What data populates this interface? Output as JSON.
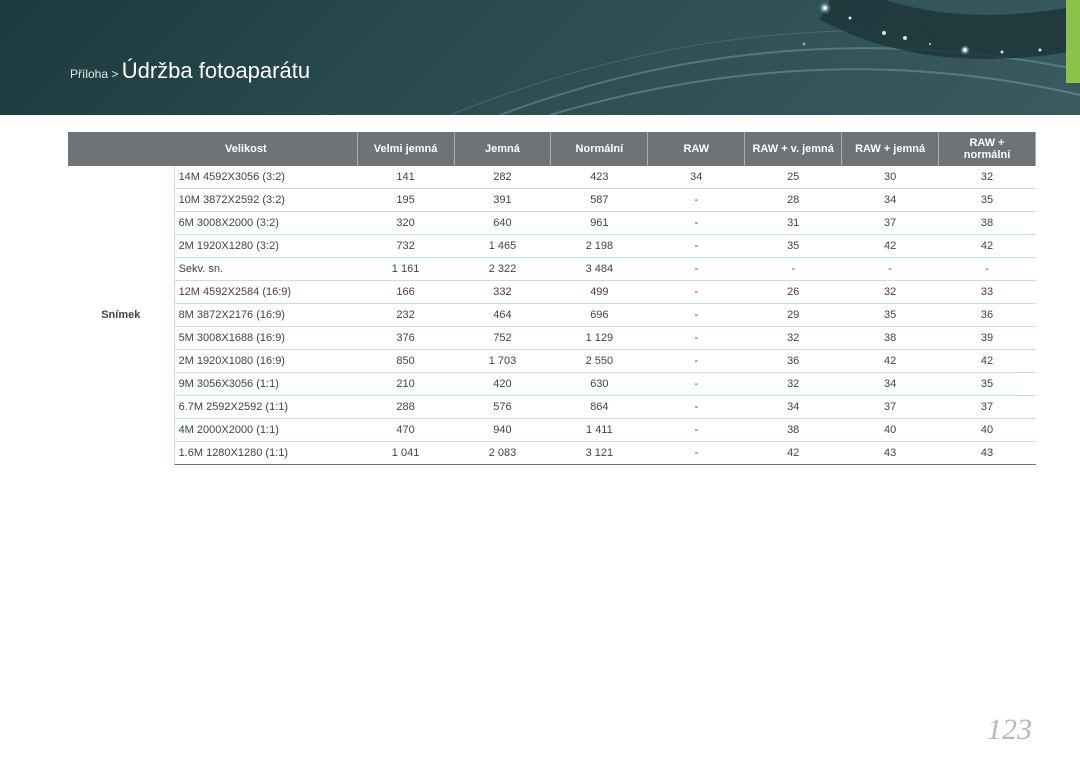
{
  "header": {
    "prefix": "Příloha >",
    "title": "Údržba fotoaparátu"
  },
  "table": {
    "row_label": "Snímek",
    "columns": [
      "Velikost",
      "Velmi jemná",
      "Jemná",
      "Normální",
      "RAW",
      "RAW + v. jemná",
      "RAW + jemná",
      "RAW + normální"
    ],
    "rows": [
      [
        "14M 4592X3056 (3:2)",
        "141",
        "282",
        "423",
        "34",
        "25",
        "30",
        "32"
      ],
      [
        "10M 3872X2592 (3:2)",
        "195",
        "391",
        "587",
        "-",
        "28",
        "34",
        "35"
      ],
      [
        "6M 3008X2000 (3:2)",
        "320",
        "640",
        "961",
        "-",
        "31",
        "37",
        "38"
      ],
      [
        "2M 1920X1280 (3:2)",
        "732",
        "1 465",
        "2 198",
        "-",
        "35",
        "42",
        "42"
      ],
      [
        "Sekv. sn.",
        "1 161",
        "2 322",
        "3 484",
        "-",
        "-",
        "-",
        "-"
      ],
      [
        "12M 4592X2584 (16:9)",
        "166",
        "332",
        "499",
        "-",
        "26",
        "32",
        "33"
      ],
      [
        "8M 3872X2176 (16:9)",
        "232",
        "464",
        "696",
        "-",
        "29",
        "35",
        "36"
      ],
      [
        "5M 3008X1688 (16:9)",
        "376",
        "752",
        "1 129",
        "-",
        "32",
        "38",
        "39"
      ],
      [
        "2M 1920X1080 (16:9)",
        "850",
        "1 703",
        "2 550",
        "-",
        "36",
        "42",
        "42"
      ],
      [
        "9M 3056X3056 (1:1)",
        "210",
        "420",
        "630",
        "-",
        "32",
        "34",
        "35"
      ],
      [
        "6.7M 2592X2592 (1:1)",
        "288",
        "576",
        "864",
        "-",
        "34",
        "37",
        "37"
      ],
      [
        "4M 2000X2000 (1:1)",
        "470",
        "940",
        "1 411",
        "-",
        "38",
        "40",
        "40"
      ],
      [
        "1.6M 1280X1280 (1:1)",
        "1 041",
        "2 083",
        "3 121",
        "-",
        "42",
        "43",
        "43"
      ]
    ]
  },
  "page_number": "123",
  "colors": {
    "header_bg": "#6e7377",
    "header_text": "#ffffff",
    "row_border": "#bfe4e8",
    "page_num": "#b8b8b8",
    "accent_tab": "#8bc34a"
  }
}
